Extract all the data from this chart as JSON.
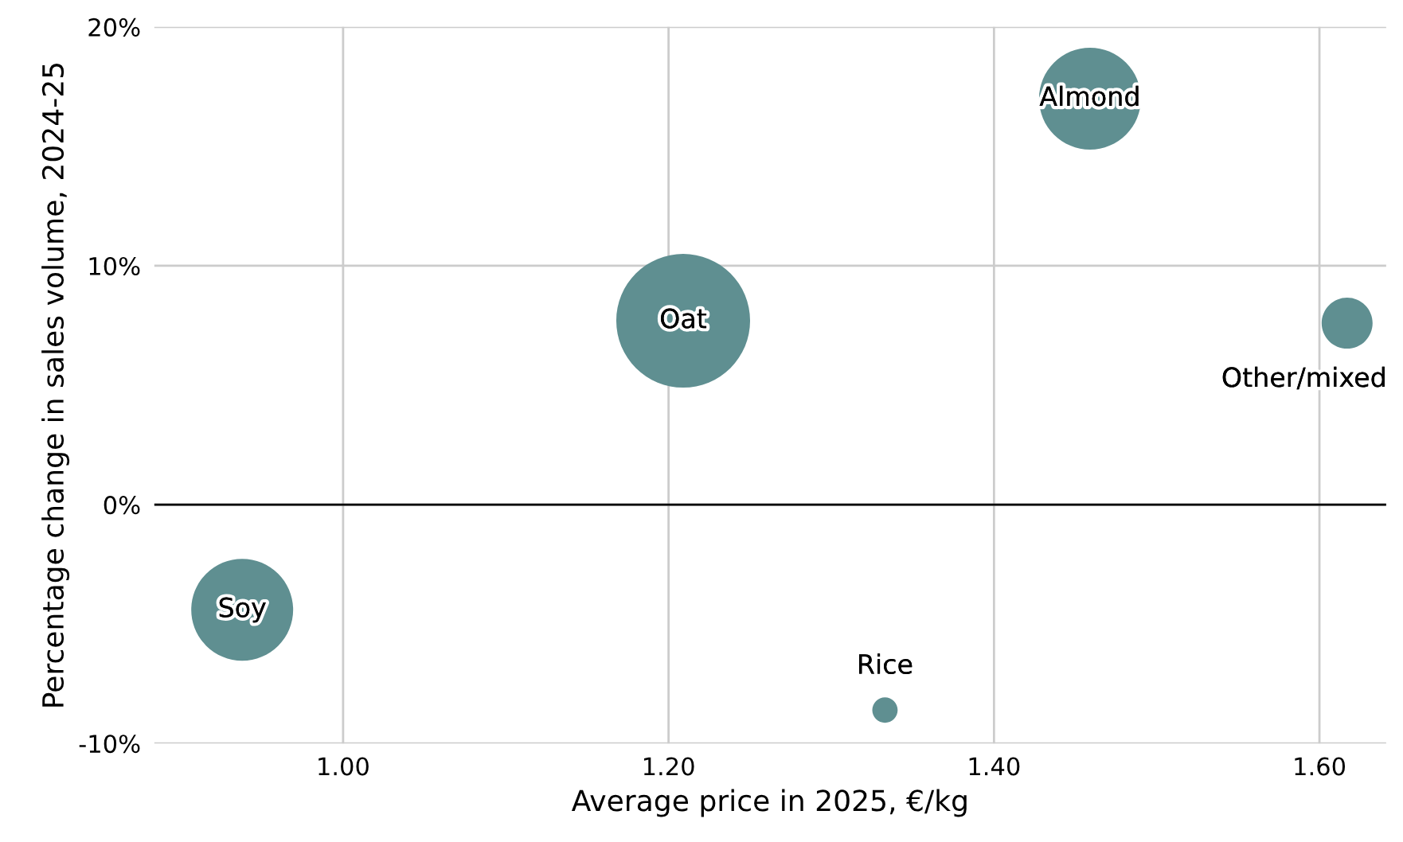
{
  "chart_data": {
    "type": "bubble",
    "xlabel": "Average price in 2025, €/kg",
    "ylabel": "Percentage change in sales volume, 2024-25",
    "x": [
      0.938,
      1.209,
      1.459,
      1.617,
      1.333
    ],
    "series": [
      {
        "color": "#5f8f91",
        "values": [
          -4.4,
          7.7,
          17.0,
          7.6,
          -8.6
        ],
        "sizes": [
          0.58,
          1,
          0.58,
          0.145,
          0.036
        ]
      }
    ],
    "annotations": [
      {
        "text": "Soy",
        "x": 0.938,
        "y": -4.4
      },
      {
        "text": "Oat",
        "x": 1.209,
        "y": 7.7
      },
      {
        "text": "Almond",
        "x": 1.459,
        "y": 17.0
      },
      {
        "text": "Other/mixed",
        "x": 1.617,
        "y": 7.6
      },
      {
        "text": "Rice",
        "x": 1.333,
        "y": -8.6
      }
    ],
    "xlim": [
      0.884,
      1.641
    ],
    "ylim": [
      -10,
      20
    ],
    "xticks": [
      {
        "value": 1.0,
        "label": "1.00"
      },
      {
        "value": 1.2,
        "label": "1.20"
      },
      {
        "value": 1.4,
        "label": "1.40"
      },
      {
        "value": 1.6,
        "label": "1.60"
      }
    ],
    "yticks": [
      {
        "value": -10,
        "label": "-10%"
      },
      {
        "value": 0,
        "label": "0%"
      },
      {
        "value": 10,
        "label": "10%"
      },
      {
        "value": 20,
        "label": "20%"
      }
    ],
    "ref_lines": [
      {
        "axis": "y",
        "value": 0,
        "color": "#000000"
      }
    ],
    "grid": true,
    "legend": false
  }
}
